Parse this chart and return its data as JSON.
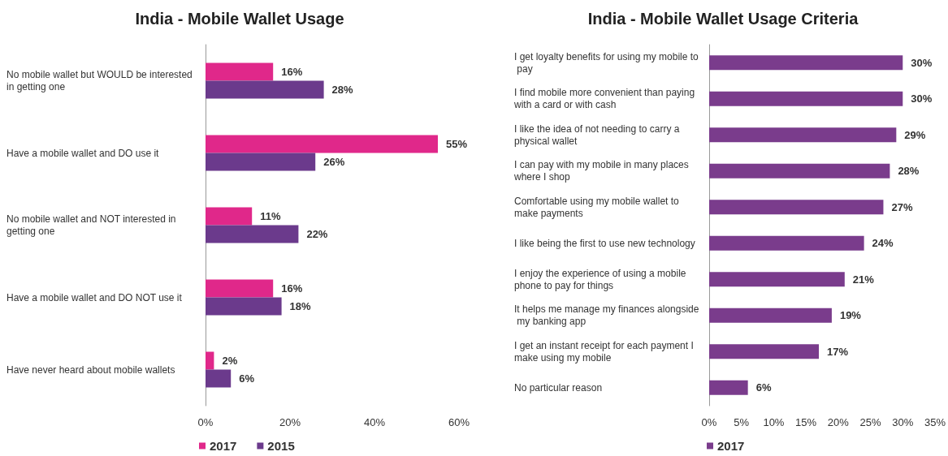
{
  "chart_data": [
    {
      "type": "bar",
      "orientation": "horizontal",
      "title": "India - Mobile Wallet Usage",
      "categories": [
        "No mobile wallet but WOULD be interested in getting one",
        "Have a mobile wallet and DO use it",
        "No mobile wallet and NOT interested in getting one",
        "Have a mobile wallet and DO NOT use it",
        "Have never heard about mobile wallets"
      ],
      "series": [
        {
          "name": "2017",
          "color": "#e0288a",
          "values": [
            16,
            55,
            11,
            16,
            2
          ],
          "value_labels": [
            "16%",
            "55%",
            "11%",
            "16%",
            "2%"
          ]
        },
        {
          "name": "2015",
          "color": "#6b3a8c",
          "values": [
            28,
            26,
            22,
            18,
            6
          ],
          "value_labels": [
            "28%",
            "26%",
            "22%",
            "18%",
            "6%"
          ]
        }
      ],
      "xlim": [
        0,
        60
      ],
      "xticks": [
        {
          "value": 0,
          "label": "0%"
        },
        {
          "value": 20,
          "label": "20%"
        },
        {
          "value": 40,
          "label": "40%"
        },
        {
          "value": 60,
          "label": "60%"
        }
      ],
      "grid": false,
      "legend": "bottom left"
    },
    {
      "type": "bar",
      "orientation": "horizontal",
      "title": "India - Mobile Wallet Usage Criteria",
      "categories": [
        "I get loyalty benefits for using my mobile to pay",
        "I find mobile more convenient than paying with a card or with cash",
        "I like the idea of not needing to carry a physical wallet",
        "I can pay with my mobile in many places where I shop",
        "Comfortable using my mobile wallet to make payments",
        "I like being the first to use new technology",
        "I enjoy the experience of using a mobile phone to pay for things",
        "It helps me manage my finances alongside my banking app",
        "I get an instant receipt for each payment I make using my mobile",
        "No particular reason"
      ],
      "series": [
        {
          "name": "2017",
          "color": "#7a3c8c",
          "values": [
            30,
            30,
            29,
            28,
            27,
            24,
            21,
            19,
            17,
            6
          ],
          "value_labels": [
            "30%",
            "30%",
            "29%",
            "28%",
            "27%",
            "24%",
            "21%",
            "19%",
            "17%",
            "6%"
          ]
        }
      ],
      "xlim": [
        0,
        35
      ],
      "xticks": [
        {
          "value": 0,
          "label": "0%"
        },
        {
          "value": 5,
          "label": "5%"
        },
        {
          "value": 10,
          "label": "10%"
        },
        {
          "value": 15,
          "label": "15%"
        },
        {
          "value": 20,
          "label": "20%"
        },
        {
          "value": 25,
          "label": "25%"
        },
        {
          "value": 30,
          "label": "30%"
        },
        {
          "value": 35,
          "label": "35%"
        }
      ],
      "grid": false,
      "legend": "bottom left"
    }
  ]
}
